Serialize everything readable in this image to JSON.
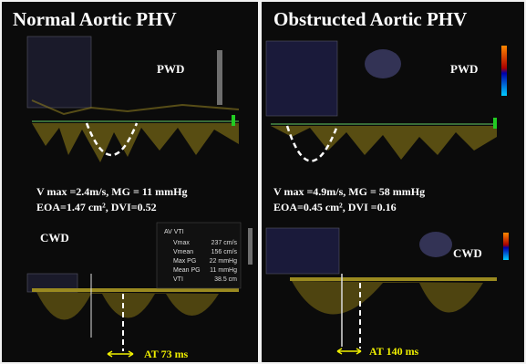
{
  "panels": [
    {
      "title": "Normal Aortic PHV",
      "pwd_label": "PWD",
      "line1": "V max =2.4m/s, MG = 11 mmHg",
      "line2": "EOA=1.47 cm², DVI=0.52",
      "cwd_label": "CWD",
      "measurements": {
        "header": "AV VTI",
        "rows": [
          [
            "Vmax",
            "237 cm/s"
          ],
          [
            "Vmean",
            "156 cm/s"
          ],
          [
            "Max PG",
            "22 mmHg"
          ],
          [
            "Mean PG",
            "11 mmHg"
          ],
          [
            "VTI",
            "38.5 cm"
          ]
        ]
      },
      "at_label": "AT 73 ms"
    },
    {
      "title": "Obstructed Aortic PHV",
      "pwd_label": "PWD",
      "line1": "V max =4.9m/s, MG = 58 mmHg",
      "line2": "EOA=0.45 cm², DVI =0.16",
      "cwd_label": "CWD",
      "at_label": "AT 140 ms"
    }
  ]
}
